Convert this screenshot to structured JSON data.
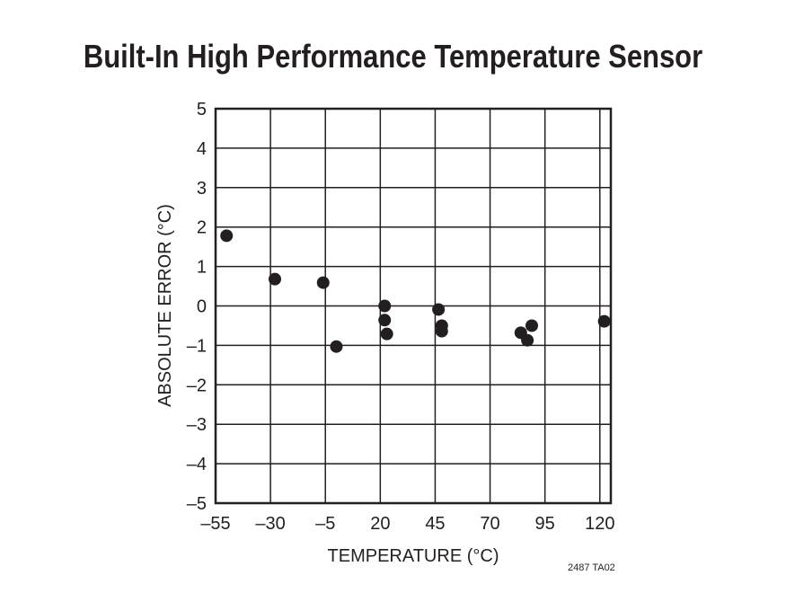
{
  "chart_data": {
    "type": "scatter",
    "title": "Built-In High Performance Temperature Sensor",
    "xlabel": "TEMPERATURE (°C)",
    "ylabel": "ABSOLUTE ERROR (°C)",
    "xlim": [
      -55,
      125
    ],
    "ylim": [
      -5,
      5
    ],
    "xticks": [
      -55,
      -30,
      -5,
      20,
      45,
      70,
      95,
      120
    ],
    "xtick_labels": [
      "–55",
      "–30",
      "–5",
      "20",
      "45",
      "70",
      "95",
      "120"
    ],
    "yticks": [
      5,
      4,
      3,
      2,
      1,
      0,
      -1,
      -2,
      -3,
      -4,
      -5
    ],
    "ytick_labels": [
      "5",
      "4",
      "3",
      "2",
      "1",
      "0",
      "–1",
      "–2",
      "–3",
      "–4",
      "–5"
    ],
    "grid": true,
    "marker_color": "#231f20",
    "points": [
      {
        "x": -50,
        "y": 1.78
      },
      {
        "x": -28,
        "y": 0.68
      },
      {
        "x": -6,
        "y": 0.59
      },
      {
        "x": 0,
        "y": -1.03
      },
      {
        "x": 22,
        "y": 0.0
      },
      {
        "x": 22,
        "y": -0.36
      },
      {
        "x": 23,
        "y": -0.71
      },
      {
        "x": 46.5,
        "y": -0.09
      },
      {
        "x": 48,
        "y": -0.5
      },
      {
        "x": 48,
        "y": -0.64
      },
      {
        "x": 84,
        "y": -0.68
      },
      {
        "x": 87,
        "y": -0.87
      },
      {
        "x": 89,
        "y": -0.5
      },
      {
        "x": 122,
        "y": -0.39
      }
    ]
  },
  "figure_code": "2487 TA02"
}
